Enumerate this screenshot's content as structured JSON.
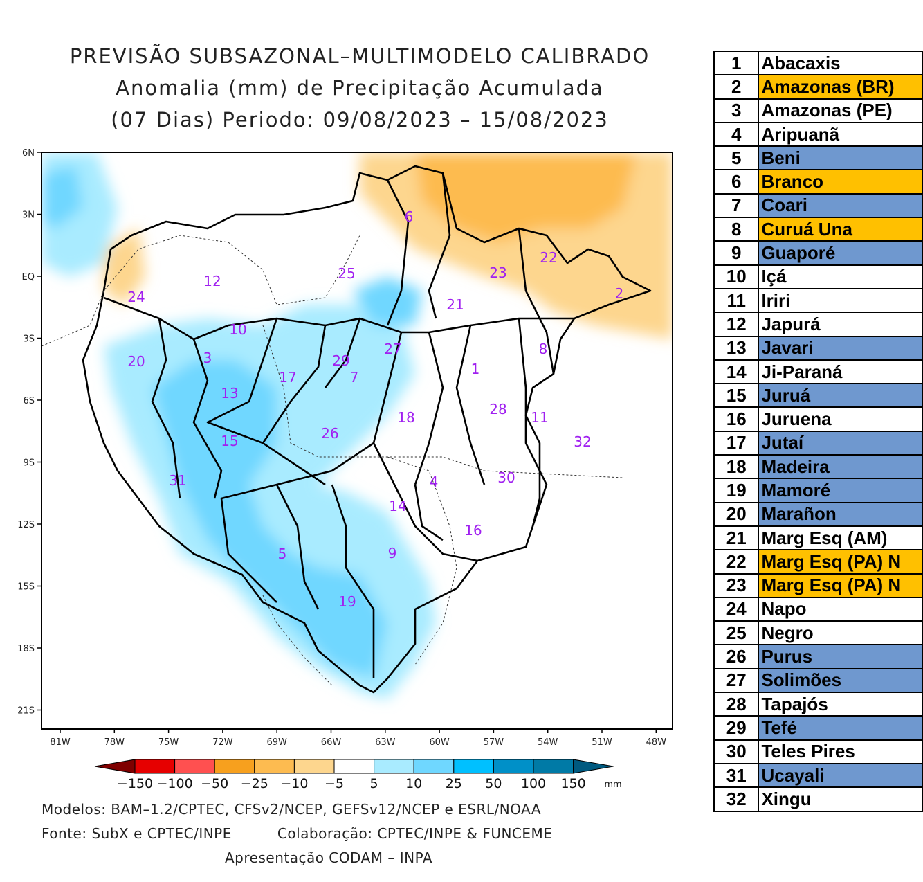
{
  "title": {
    "line1": "PREVISÃO SUBSAZONAL–MULTIMODELO CALIBRADO",
    "line2": "Anomalia (mm) de Precipitação Acumulada",
    "line3": "(07 Dias) Periodo: 09/08/2023 – 15/08/2023"
  },
  "map": {
    "lat_ticks": [
      "6N",
      "3N",
      "EQ",
      "3S",
      "6S",
      "9S",
      "12S",
      "15S",
      "18S",
      "21S"
    ],
    "lon_ticks": [
      "81W",
      "78W",
      "75W",
      "72W",
      "69W",
      "66W",
      "63W",
      "60W",
      "57W",
      "54W",
      "51W",
      "48W"
    ],
    "basin_labels": [
      {
        "id": "1"
      },
      {
        "id": "2"
      },
      {
        "id": "3"
      },
      {
        "id": "4"
      },
      {
        "id": "5"
      },
      {
        "id": "6"
      },
      {
        "id": "7"
      },
      {
        "id": "8"
      },
      {
        "id": "9"
      },
      {
        "id": "10"
      },
      {
        "id": "11"
      },
      {
        "id": "12"
      },
      {
        "id": "13"
      },
      {
        "id": "14"
      },
      {
        "id": "15"
      },
      {
        "id": "16"
      },
      {
        "id": "17"
      },
      {
        "id": "18"
      },
      {
        "id": "19"
      },
      {
        "id": "20"
      },
      {
        "id": "21"
      },
      {
        "id": "22"
      },
      {
        "id": "23"
      },
      {
        "id": "24"
      },
      {
        "id": "25"
      },
      {
        "id": "26"
      },
      {
        "id": "27"
      },
      {
        "id": "28"
      },
      {
        "id": "29"
      },
      {
        "id": "30"
      },
      {
        "id": "31"
      },
      {
        "id": "32"
      }
    ]
  },
  "colorbar": {
    "labels": [
      "−150",
      "−100",
      "−50",
      "−25",
      "−10",
      "−5",
      "5",
      "10",
      "25",
      "50",
      "100",
      "150"
    ],
    "unit": "mm",
    "colors": [
      "#7f0000",
      "#e60000",
      "#ff5050",
      "#f7a01e",
      "#fdbb50",
      "#fdd68e",
      "#ffffff",
      "#a9ebff",
      "#6fd7ff",
      "#00c0ff",
      "#0090c8",
      "#007aa6",
      "#005a80"
    ]
  },
  "footer": {
    "models": "Modelos: BAM–1.2/CPTEC, CFSv2/NCEP, GEFSv12/NCEP e ESRL/NOAA",
    "source": "Fonte: SubX e CPTEC/INPE",
    "collab": "Colaboração: CPTEC/INPE & FUNCEME",
    "presentation": "Apresentação CODAM – INPA"
  },
  "basins": [
    {
      "num": "1",
      "name": "Abacaxis",
      "color": "#ffffff"
    },
    {
      "num": "2",
      "name": "Amazonas (BR)",
      "color": "#ffc000"
    },
    {
      "num": "3",
      "name": "Amazonas (PE)",
      "color": "#ffffff"
    },
    {
      "num": "4",
      "name": "Aripuanã",
      "color": "#ffffff"
    },
    {
      "num": "5",
      "name": "Beni",
      "color": "#6f98cf"
    },
    {
      "num": "6",
      "name": "Branco",
      "color": "#ffc000"
    },
    {
      "num": "7",
      "name": "Coari",
      "color": "#6f98cf"
    },
    {
      "num": "8",
      "name": "Curuá Una",
      "color": "#ffc000"
    },
    {
      "num": "9",
      "name": "Guaporé",
      "color": "#6f98cf"
    },
    {
      "num": "10",
      "name": "Içá",
      "color": "#ffffff"
    },
    {
      "num": "11",
      "name": "Iriri",
      "color": "#ffffff"
    },
    {
      "num": "12",
      "name": "Japurá",
      "color": "#ffffff"
    },
    {
      "num": "13",
      "name": "Javari",
      "color": "#6f98cf"
    },
    {
      "num": "14",
      "name": "Ji-Paraná",
      "color": "#ffffff"
    },
    {
      "num": "15",
      "name": "Juruá",
      "color": "#6f98cf"
    },
    {
      "num": "16",
      "name": "Juruena",
      "color": "#ffffff"
    },
    {
      "num": "17",
      "name": "Jutaí",
      "color": "#6f98cf"
    },
    {
      "num": "18",
      "name": "Madeira",
      "color": "#6f98cf"
    },
    {
      "num": "19",
      "name": "Mamoré",
      "color": "#6f98cf"
    },
    {
      "num": "20",
      "name": "Marañon",
      "color": "#6f98cf"
    },
    {
      "num": "21",
      "name": "Marg Esq (AM)",
      "color": "#ffffff"
    },
    {
      "num": "22",
      "name": "Marg Esq (PA) N",
      "color": "#ffc000"
    },
    {
      "num": "23",
      "name": "Marg Esq (PA) N",
      "color": "#ffc000"
    },
    {
      "num": "24",
      "name": "Napo",
      "color": "#ffffff"
    },
    {
      "num": "25",
      "name": "Negro",
      "color": "#ffffff"
    },
    {
      "num": "26",
      "name": "Purus",
      "color": "#6f98cf"
    },
    {
      "num": "27",
      "name": "Solimões",
      "color": "#6f98cf"
    },
    {
      "num": "28",
      "name": "Tapajós",
      "color": "#ffffff"
    },
    {
      "num": "29",
      "name": "Tefé",
      "color": "#6f98cf"
    },
    {
      "num": "30",
      "name": "Teles Pires",
      "color": "#ffffff"
    },
    {
      "num": "31",
      "name": "Ucayali",
      "color": "#6f98cf"
    },
    {
      "num": "32",
      "name": "Xingu",
      "color": "#ffffff"
    }
  ]
}
